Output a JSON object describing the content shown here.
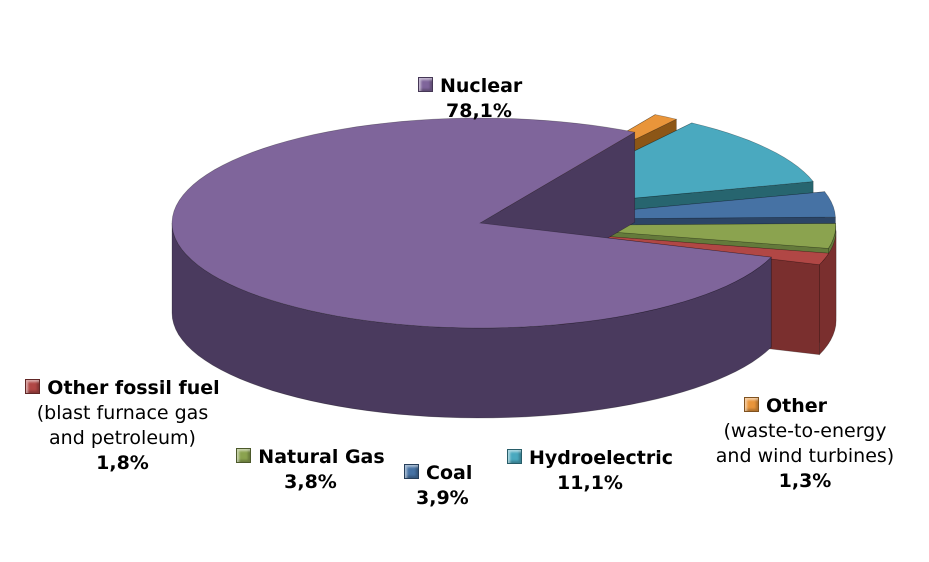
{
  "chart_data": {
    "type": "pie",
    "style": "3d-exploded",
    "slices": [
      {
        "label": "Nuclear",
        "value": 78.1,
        "value_label": "78,1%",
        "color": "#7F659B",
        "side": "#4A3A5E"
      },
      {
        "label": "Other",
        "detail": [
          "(waste-to-energy",
          "and wind turbines)"
        ],
        "value": 1.3,
        "value_label": "1,3%",
        "color": "#E9953A",
        "side": "#8C5616"
      },
      {
        "label": "Hydroelectric",
        "value": 11.1,
        "value_label": "11,1%",
        "color": "#4AA9BF",
        "side": "#27656F"
      },
      {
        "label": "Coal",
        "value": 3.9,
        "value_label": "3,9%",
        "color": "#4672A4",
        "side": "#2C4566"
      },
      {
        "label": "Natural Gas",
        "value": 3.8,
        "value_label": "3,8%",
        "color": "#8BA34F",
        "side": "#647A3B"
      },
      {
        "label": "Other fossil fuel",
        "detail": [
          "(blast furnace gas",
          "and petroleum)"
        ],
        "value": 1.8,
        "value_label": "1,8%",
        "color": "#B14745",
        "side": "#7A2F2E"
      }
    ]
  }
}
